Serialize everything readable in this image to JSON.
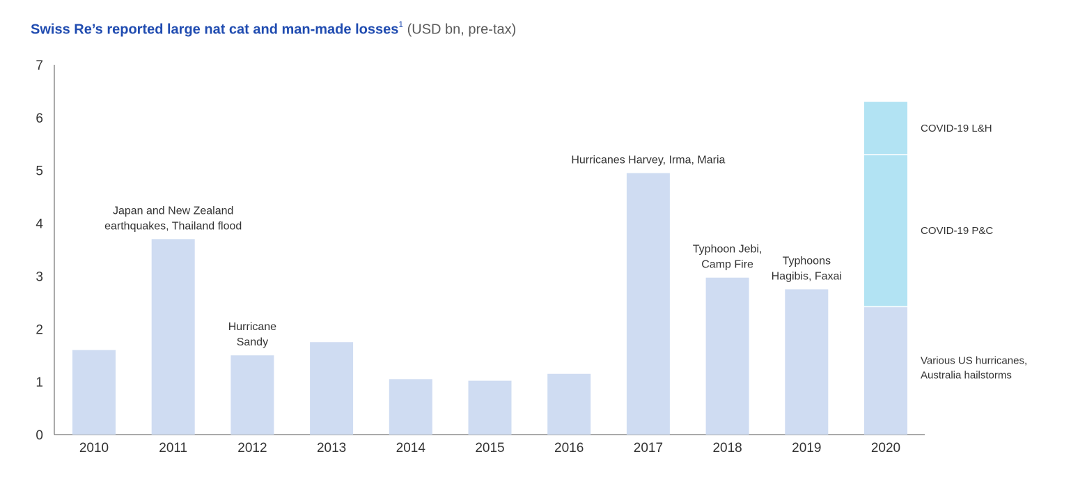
{
  "title": {
    "main": "Swiss Re’s reported large nat cat and man-made losses",
    "footnote": "1",
    "unit": "(USD bn, pre-tax)"
  },
  "colors": {
    "bar": "#cfdcf2",
    "covid": "#b2e3f3",
    "axis": "#555555",
    "text": "#333333",
    "title": "#1f4bb0"
  },
  "chart_data": {
    "type": "bar",
    "stacked": true,
    "categories": [
      "2010",
      "2011",
      "2012",
      "2013",
      "2014",
      "2015",
      "2016",
      "2017",
      "2018",
      "2019",
      "2020"
    ],
    "series": [
      {
        "values": [
          1.6,
          3.7,
          1.5,
          1.75,
          1.05,
          1.02,
          1.15,
          4.95,
          2.97,
          2.75,
          2.42
        ]
      },
      {
        "values": [
          0,
          0,
          0,
          0,
          0,
          0,
          0,
          0,
          0,
          0,
          2.88
        ]
      },
      {
        "values": [
          0,
          0,
          0,
          0,
          0,
          0,
          0,
          0,
          0,
          0,
          1.0
        ]
      }
    ],
    "ylim": [
      0,
      7
    ],
    "yticks": [
      "0",
      "1",
      "2",
      "3",
      "4",
      "5",
      "6",
      "7"
    ],
    "xlabel": "",
    "ylabel": "",
    "grid": false,
    "annotations": [
      {
        "category": "2011",
        "lines": [
          "Japan and New Zealand",
          "earthquakes, Thailand flood"
        ]
      },
      {
        "category": "2012",
        "lines": [
          "Hurricane",
          "Sandy"
        ]
      },
      {
        "category": "2017",
        "lines": [
          "Hurricanes Harvey, Irma, Maria"
        ]
      },
      {
        "category": "2018",
        "lines": [
          "Typhoon Jebi,",
          "Camp Fire"
        ]
      },
      {
        "category": "2019",
        "lines": [
          "Typhoons",
          "Hagibis, Faxai"
        ]
      }
    ],
    "segment_labels": [
      {
        "series": 2,
        "lines": [
          "COVID-19 L&H"
        ]
      },
      {
        "series": 1,
        "lines": [
          "COVID-19 P&C"
        ]
      },
      {
        "series": 0,
        "lines": [
          "Various US hurricanes,",
          "Australia hailstorms"
        ]
      }
    ]
  }
}
